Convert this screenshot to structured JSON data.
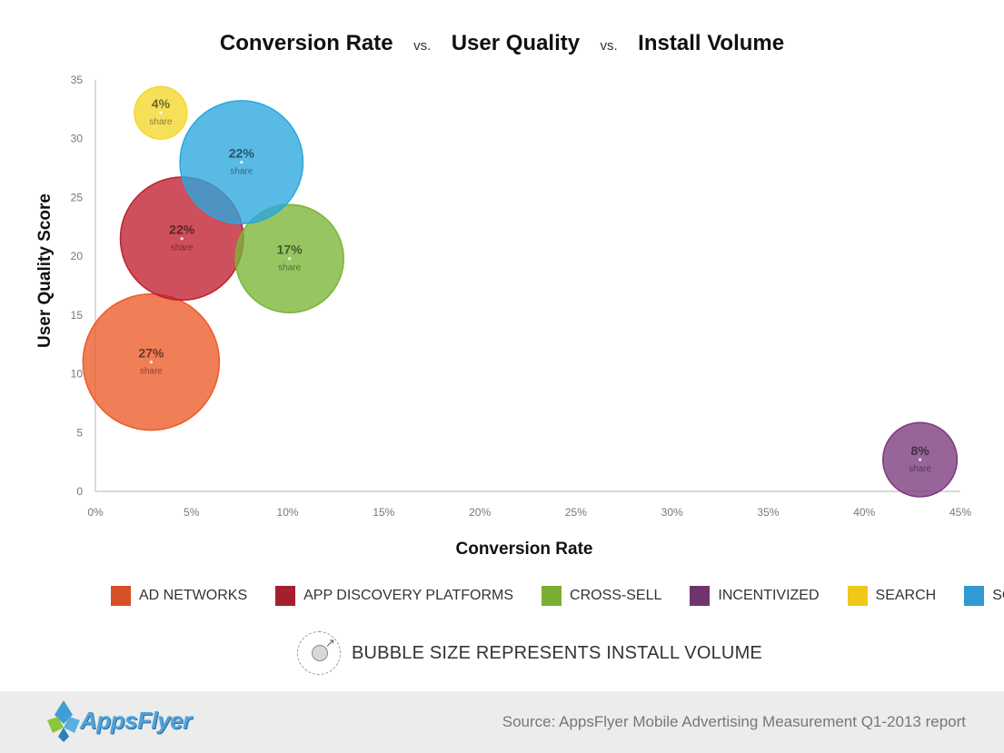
{
  "title": {
    "part1": "Conversion Rate",
    "vs1": "vs.",
    "part2": "User Quality",
    "vs2": "vs.",
    "part3": "Install Volume"
  },
  "chart_data": {
    "type": "bubble",
    "xlabel": "Conversion Rate",
    "ylabel": "User Quality Score",
    "xlim": [
      0,
      45
    ],
    "ylim": [
      0,
      35
    ],
    "xticks": [
      0,
      5,
      10,
      15,
      20,
      25,
      30,
      35,
      40,
      45
    ],
    "xtick_labels": [
      "0%",
      "5%",
      "10%",
      "15%",
      "20%",
      "25%",
      "30%",
      "35%",
      "40%",
      "45%"
    ],
    "yticks": [
      0,
      5,
      10,
      15,
      20,
      25,
      30,
      35
    ],
    "ytick_labels": [
      "0",
      "5",
      "10",
      "15",
      "20",
      "25",
      "30",
      "35"
    ],
    "series": [
      {
        "name": "AD NETWORKS",
        "x": 2.9,
        "y": 11,
        "share": 27,
        "label": "27%",
        "sublabel": "share",
        "color": "#ec5a28"
      },
      {
        "name": "APP DISCOVERY PLATFORMS",
        "x": 4.5,
        "y": 21.5,
        "share": 22,
        "label": "22%",
        "sublabel": "share",
        "color": "#bf1f2e"
      },
      {
        "name": "CROSS-SELL",
        "x": 10.1,
        "y": 19.8,
        "share": 17,
        "label": "17%",
        "sublabel": "share",
        "color": "#7ab534"
      },
      {
        "name": "INCENTIVIZED",
        "x": 42.9,
        "y": 2.7,
        "share": 8,
        "label": "8%",
        "sublabel": "share",
        "color": "#7b3a7e"
      },
      {
        "name": "SEARCH",
        "x": 3.4,
        "y": 32.2,
        "share": 4,
        "label": "4%",
        "sublabel": "share",
        "color": "#f3d72c"
      },
      {
        "name": "SOCIAL",
        "x": 7.6,
        "y": 28,
        "share": 22,
        "label": "22%",
        "sublabel": "share",
        "color": "#2aa7de"
      }
    ],
    "legend_position": "bottom"
  },
  "legend": [
    {
      "label": "AD NETWORKS",
      "color": "#d85026"
    },
    {
      "label": "APP DISCOVERY PLATFORMS",
      "color": "#a4202e"
    },
    {
      "label": "CROSS-SELL",
      "color": "#7aae33"
    },
    {
      "label": "INCENTIVIZED",
      "color": "#6e3470"
    },
    {
      "label": "SEARCH",
      "color": "#f0c819"
    },
    {
      "label": "SOCIAL",
      "color": "#2f9ad4"
    }
  ],
  "note": {
    "icon": "bubble-size-icon",
    "text": "BUBBLE SIZE REPRESENTS INSTALL VOLUME"
  },
  "footer": {
    "logo_text": "AppsFlyer",
    "source": "Source: AppsFlyer Mobile Advertising Measurement Q1-2013 report"
  }
}
